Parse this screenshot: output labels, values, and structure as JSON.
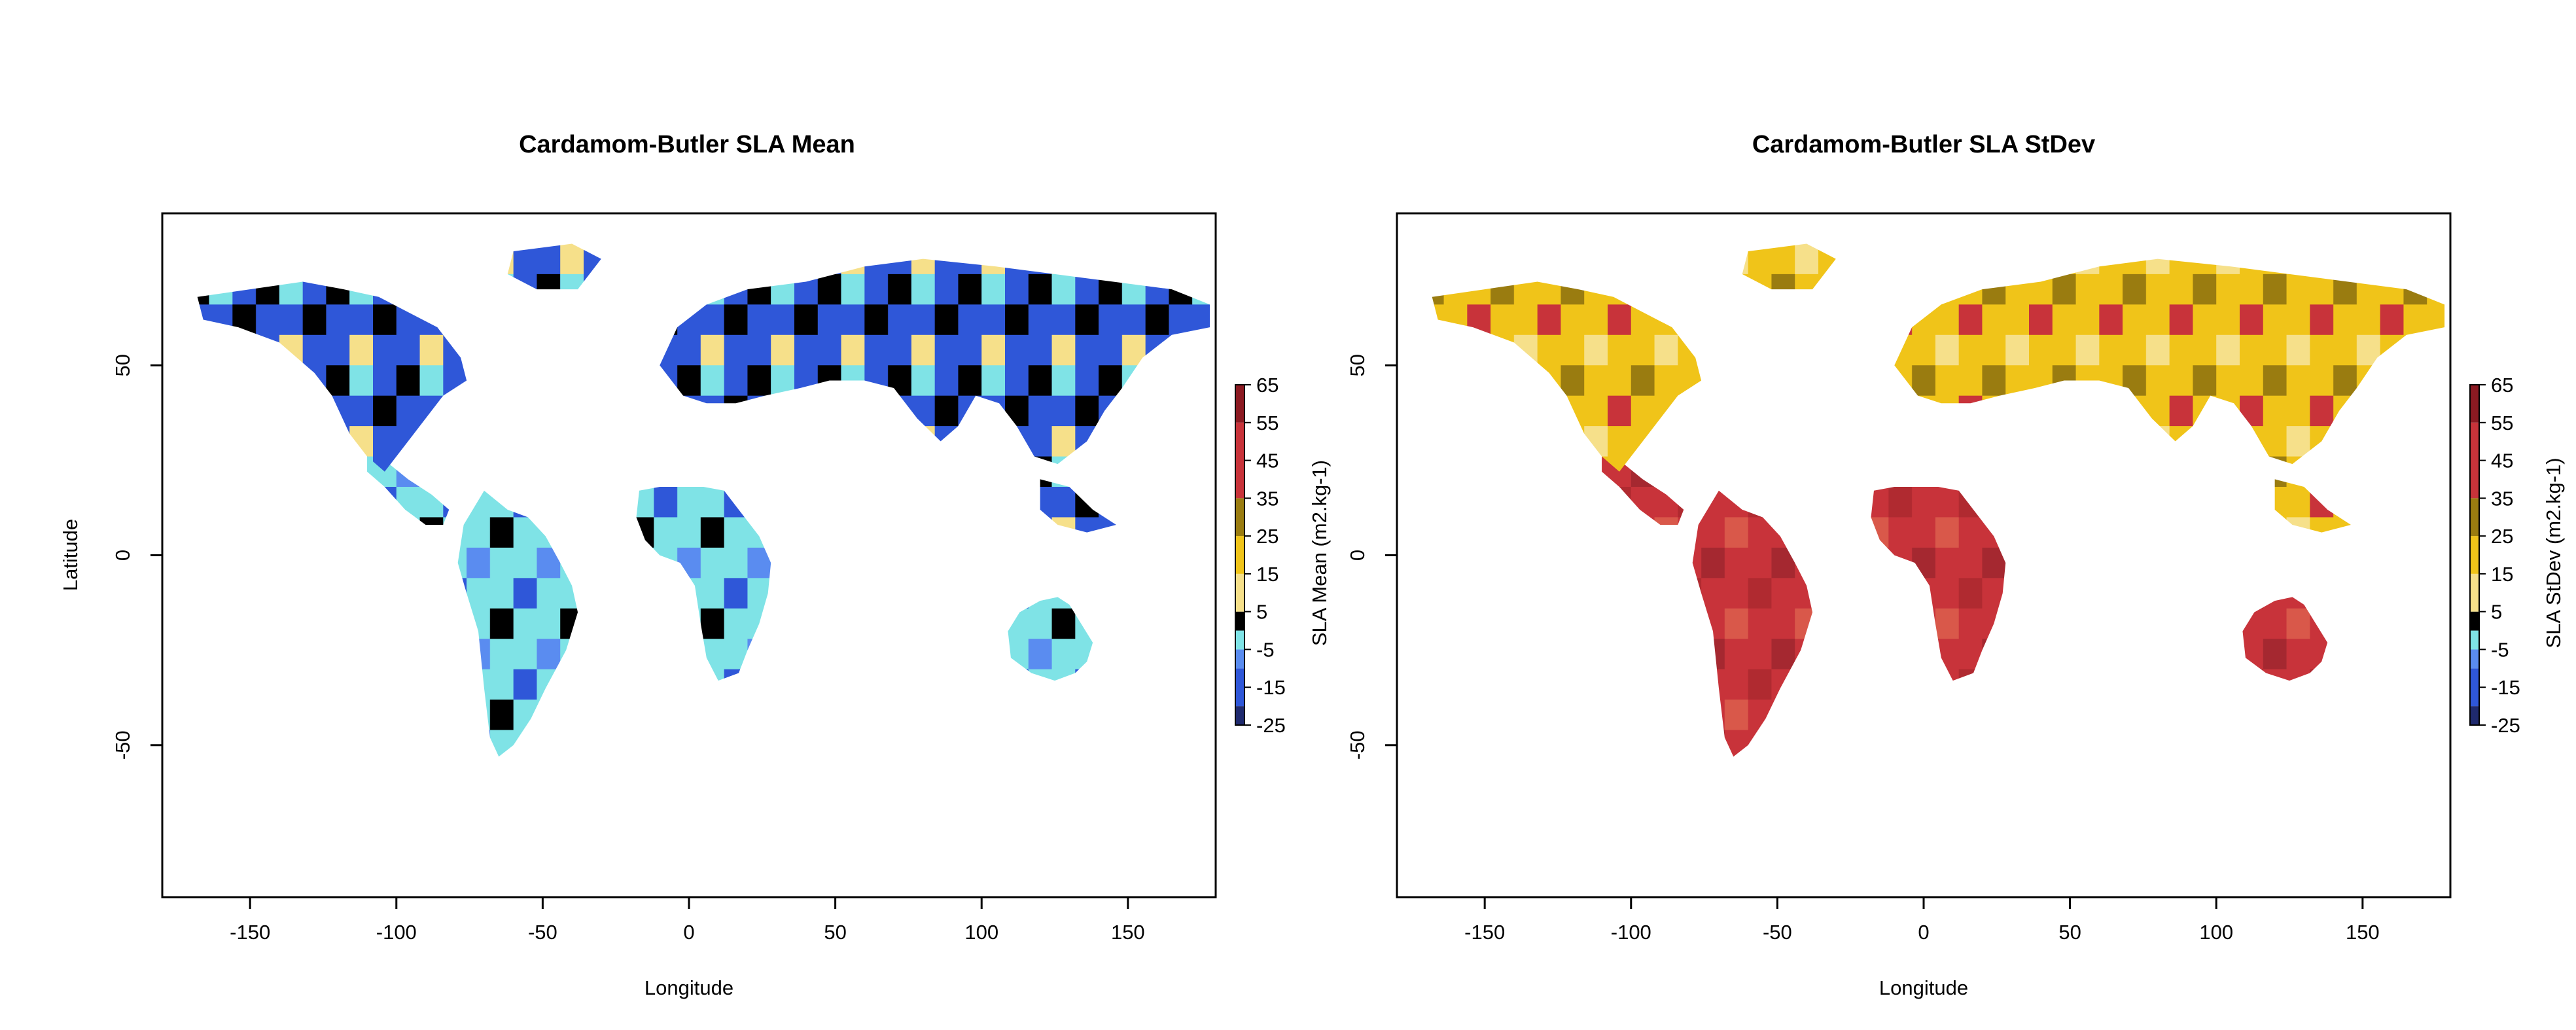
{
  "panels": [
    {
      "title": "Cardamom-Butler SLA Mean",
      "xlabel": "Longitude",
      "ylabel": "Latitude",
      "legend_label": "SLA Mean (m2.kg-1)",
      "xticks": [
        "-150",
        "-100",
        "-50",
        "0",
        "50",
        "100",
        "150"
      ],
      "yticks": [
        "50",
        "0",
        "-50"
      ],
      "legend_ticks": [
        "65",
        "55",
        "45",
        "35",
        "25",
        "15",
        "5",
        "-5",
        "-15",
        "-25"
      ],
      "xlim": [
        -180,
        180
      ],
      "ylim": [
        -90,
        90
      ],
      "dominant_color": "#7fe3e6"
    },
    {
      "title": "Cardamom-Butler SLA StDev",
      "xlabel": "Longitude",
      "ylabel": "",
      "legend_label": "SLA StDev (m2.kg-1)",
      "xticks": [
        "-150",
        "-100",
        "-50",
        "0",
        "50",
        "100",
        "150"
      ],
      "yticks": [
        "50",
        "0",
        "-50"
      ],
      "legend_ticks": [
        "65",
        "55",
        "45",
        "35",
        "25",
        "15",
        "5",
        "-5",
        "-15",
        "-25"
      ],
      "xlim": [
        -180,
        180
      ],
      "ylim": [
        -90,
        90
      ],
      "dominant_color": "#c8333a"
    }
  ],
  "colorbar": {
    "range": [
      -25,
      65
    ],
    "stops": [
      {
        "from": -25,
        "to": -20,
        "color": "#1f2a6e"
      },
      {
        "from": -20,
        "to": -10,
        "color": "#2f57d8"
      },
      {
        "from": -10,
        "to": -5,
        "color": "#5a8cf0"
      },
      {
        "from": -5,
        "to": 0,
        "color": "#7fe3e6"
      },
      {
        "from": 0,
        "to": 5,
        "color": "#000000"
      },
      {
        "from": 5,
        "to": 15,
        "color": "#f6e08a"
      },
      {
        "from": 15,
        "to": 25,
        "color": "#f0c419"
      },
      {
        "from": 25,
        "to": 35,
        "color": "#9a7c10"
      },
      {
        "from": 35,
        "to": 55,
        "color": "#c8333a"
      },
      {
        "from": 55,
        "to": 65,
        "color": "#8c1a22"
      }
    ]
  }
}
